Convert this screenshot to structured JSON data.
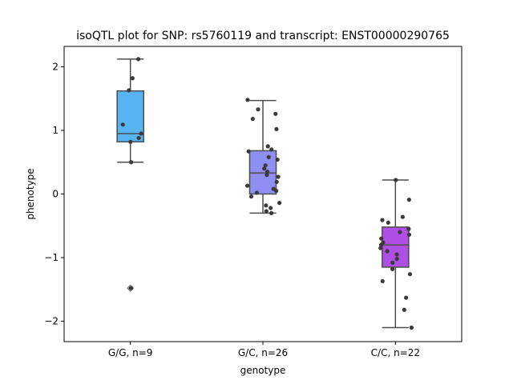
{
  "chart_data": {
    "type": "box",
    "title": "isoQTL plot for SNP: rs5760119 and transcript: ENST00000290765",
    "xlabel": "genotype",
    "ylabel": "phenotype",
    "ylim": [
      -2.32,
      2.32
    ],
    "yticks": [
      -2,
      -1,
      0,
      1,
      2
    ],
    "yticklabels": [
      "−2",
      "−1",
      "0",
      "1",
      "2"
    ],
    "grid": false,
    "groups": [
      {
        "label": "G/G, n=9",
        "color": "#56b4f0",
        "q1": 0.82,
        "median": 0.95,
        "q3": 1.62,
        "whisker_low": 0.5,
        "whisker_high": 2.12,
        "outliers": [
          -1.48
        ],
        "points": [
          2.12,
          1.82,
          1.63,
          1.09,
          0.95,
          0.88,
          0.82,
          0.5,
          -1.48
        ]
      },
      {
        "label": "G/C, n=26",
        "color": "#8f8ef2",
        "q1": 0.0,
        "median": 0.33,
        "q3": 0.68,
        "whisker_low": -0.3,
        "whisker_high": 1.47,
        "outliers": [],
        "points": [
          1.48,
          1.33,
          1.26,
          1.18,
          1.02,
          0.75,
          0.7,
          0.67,
          0.58,
          0.54,
          0.45,
          0.4,
          0.35,
          0.3,
          0.27,
          0.19,
          0.13,
          0.08,
          0.05,
          0.02,
          -0.04,
          -0.14,
          -0.18,
          -0.22,
          -0.27,
          -0.3
        ]
      },
      {
        "label": "C/C, n=22",
        "color": "#b04fe6",
        "q1": -1.15,
        "median": -0.8,
        "q3": -0.52,
        "whisker_low": -2.1,
        "whisker_high": 0.22,
        "outliers": [],
        "points": [
          0.22,
          -0.09,
          -0.36,
          -0.41,
          -0.45,
          -0.55,
          -0.6,
          -0.64,
          -0.7,
          -0.76,
          -0.8,
          -0.85,
          -0.9,
          -0.95,
          -1.02,
          -1.08,
          -1.18,
          -1.26,
          -1.37,
          -1.63,
          -1.82,
          -2.1
        ]
      }
    ]
  }
}
